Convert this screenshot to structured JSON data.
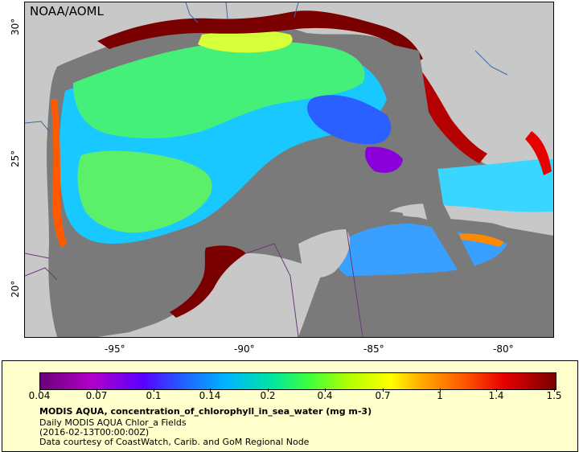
{
  "map": {
    "credit": "NOAA/AOML",
    "lat_labels": [
      "30°",
      "25°",
      "20°"
    ],
    "lon_labels": [
      "-95°",
      "-90°",
      "-85°",
      "-80°"
    ],
    "colors": {
      "land": "#c8c8c8",
      "no_data": "#7a7a7a",
      "high": "#7a0000",
      "border": "#6a3a7a",
      "river": "#3a6aa0"
    }
  },
  "legend": {
    "ticks": [
      "0.04",
      "0.07",
      "0.1",
      "0.14",
      "0.2",
      "0.4",
      "0.7",
      "1",
      "1.4",
      "1.5"
    ],
    "title": "MODIS AQUA, concentration_of_chlorophyll_in_sea_water (mg m-3)",
    "subtitle": "Daily MODIS AQUA Chlor_a Fields",
    "time": "(2016-02-13T00:00:00Z)",
    "source": "Data courtesy of CoastWatch, Carib. and GoM Regional Node"
  }
}
